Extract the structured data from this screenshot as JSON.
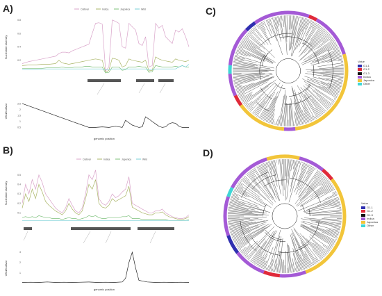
{
  "panels": {
    "A": "A)",
    "B": "B)",
    "C": "C)",
    "D": "D)"
  },
  "series_names": [
    "Cultivar",
    "Indica",
    "Japonica",
    "Wild"
  ],
  "series_colors": {
    "Cultivar": "#d9a3c9",
    "Indica": "#aab567",
    "Japonica": "#7cc07a",
    "Wild": "#77cfd6"
  },
  "y_label_top": "Nucleotide diversity",
  "y_label_bottom": "Wild/Cultivar",
  "x_label": "genomic position",
  "legend": {
    "title": "Value",
    "items": [
      {
        "label": "G1-1",
        "color": "#2f2fb0"
      },
      {
        "label": "G1-2",
        "color": "#e02a3a"
      },
      {
        "label": "G1-3",
        "color": "#111111"
      },
      {
        "label": "Indica",
        "color": "#a45ad6"
      },
      {
        "label": "Japonica",
        "color": "#f2c53a"
      },
      {
        "label": "Other",
        "color": "#3fd6d6"
      }
    ]
  },
  "chart_data": [
    {
      "type": "line",
      "panel": "A-top",
      "ylabel": "Nucleotide diversity",
      "x": [
        0,
        4,
        8,
        12,
        16,
        20,
        22,
        24,
        26,
        28,
        30,
        32,
        34,
        36,
        38,
        40,
        42,
        44,
        46,
        48,
        50,
        52,
        54,
        56,
        58,
        60,
        62,
        64,
        66,
        68,
        70,
        72,
        74,
        76,
        78,
        80,
        82,
        84,
        86,
        88,
        90,
        92,
        94,
        96,
        98,
        100
      ],
      "series": [
        {
          "name": "Cultivar",
          "values": [
            0.15,
            0.18,
            0.2,
            0.22,
            0.24,
            0.26,
            0.3,
            0.32,
            0.32,
            0.31,
            0.34,
            0.36,
            0.38,
            0.4,
            0.42,
            0.44,
            0.6,
            0.75,
            0.76,
            0.74,
            0.04,
            0.1,
            0.8,
            0.78,
            0.75,
            0.4,
            0.38,
            0.75,
            0.7,
            0.65,
            0.45,
            0.42,
            0.55,
            0.1,
            0.12,
            0.75,
            0.68,
            0.72,
            0.55,
            0.5,
            0.45,
            0.65,
            0.62,
            0.67,
            0.55,
            0.4
          ]
        },
        {
          "name": "Indica",
          "values": [
            0.12,
            0.13,
            0.13,
            0.14,
            0.14,
            0.15,
            0.2,
            0.16,
            0.15,
            0.14,
            0.15,
            0.16,
            0.17,
            0.18,
            0.19,
            0.2,
            0.21,
            0.22,
            0.21,
            0.2,
            0.02,
            0.05,
            0.23,
            0.22,
            0.2,
            0.1,
            0.12,
            0.22,
            0.2,
            0.19,
            0.18,
            0.17,
            0.2,
            0.04,
            0.05,
            0.25,
            0.22,
            0.2,
            0.19,
            0.18,
            0.17,
            0.22,
            0.2,
            0.19,
            0.18,
            0.2
          ]
        },
        {
          "name": "Japonica",
          "values": [
            0.08,
            0.08,
            0.08,
            0.08,
            0.09,
            0.09,
            0.09,
            0.1,
            0.09,
            0.09,
            0.09,
            0.1,
            0.1,
            0.1,
            0.11,
            0.11,
            0.1,
            0.1,
            0.1,
            0.1,
            0.01,
            0.02,
            0.1,
            0.1,
            0.1,
            0.05,
            0.06,
            0.1,
            0.1,
            0.1,
            0.11,
            0.1,
            0.1,
            0.02,
            0.03,
            0.12,
            0.11,
            0.1,
            0.1,
            0.1,
            0.1,
            0.11,
            0.1,
            0.12,
            0.1,
            0.1
          ]
        },
        {
          "name": "Wild",
          "values": [
            0.06,
            0.06,
            0.06,
            0.07,
            0.07,
            0.07,
            0.07,
            0.07,
            0.07,
            0.07,
            0.07,
            0.07,
            0.07,
            0.07,
            0.07,
            0.07,
            0.07,
            0.07,
            0.07,
            0.07,
            0.06,
            0.06,
            0.07,
            0.07,
            0.07,
            0.07,
            0.07,
            0.07,
            0.07,
            0.07,
            0.07,
            0.07,
            0.07,
            0.06,
            0.06,
            0.07,
            0.07,
            0.07,
            0.07,
            0.07,
            0.07,
            0.07,
            0.1,
            0.12,
            0.1,
            0.14
          ]
        }
      ]
    },
    {
      "type": "line",
      "panel": "A-bottom",
      "ylabel": "Wild/Cultivar",
      "xlabel": "genomic position",
      "x": [
        0,
        10,
        20,
        30,
        40,
        44,
        48,
        52,
        56,
        60,
        62,
        64,
        66,
        68,
        70,
        72,
        74,
        76,
        78,
        80,
        82,
        84,
        86,
        88,
        90,
        92,
        94,
        96,
        98,
        100
      ],
      "values": [
        2.5,
        2.0,
        1.5,
        1.0,
        0.5,
        0.5,
        0.55,
        0.5,
        0.6,
        0.5,
        1.1,
        0.9,
        0.7,
        0.6,
        0.5,
        0.55,
        1.4,
        1.2,
        1.0,
        0.8,
        0.6,
        0.5,
        0.55,
        0.8,
        0.9,
        0.85,
        0.6,
        0.5,
        0.5,
        0.5
      ]
    },
    {
      "type": "line",
      "panel": "B-top",
      "ylabel": "Nucleotide diversity",
      "x": [
        0,
        2,
        4,
        6,
        8,
        10,
        12,
        14,
        16,
        18,
        20,
        22,
        24,
        26,
        28,
        30,
        32,
        34,
        36,
        38,
        40,
        42,
        44,
        46,
        48,
        50,
        52,
        54,
        56,
        58,
        60,
        62,
        64,
        66,
        68,
        70,
        72,
        74,
        76,
        78,
        80,
        82,
        84,
        86,
        88,
        90,
        92,
        94,
        96,
        98,
        100
      ],
      "series": [
        {
          "name": "Cultivar",
          "values": [
            0.2,
            0.4,
            0.3,
            0.45,
            0.35,
            0.5,
            0.42,
            0.3,
            0.25,
            0.2,
            0.15,
            0.12,
            0.1,
            0.15,
            0.25,
            0.18,
            0.12,
            0.1,
            0.15,
            0.3,
            0.5,
            0.45,
            0.55,
            0.25,
            0.2,
            0.18,
            0.22,
            0.3,
            0.26,
            0.28,
            0.32,
            0.35,
            0.48,
            0.2,
            0.18,
            0.16,
            0.14,
            0.12,
            0.1,
            0.1,
            0.12,
            0.12,
            0.14,
            0.1,
            0.08,
            0.06,
            0.05,
            0.04,
            0.04,
            0.05,
            0.08
          ]
        },
        {
          "name": "Indica",
          "values": [
            0.15,
            0.3,
            0.22,
            0.35,
            0.25,
            0.4,
            0.32,
            0.22,
            0.18,
            0.15,
            0.12,
            0.1,
            0.08,
            0.12,
            0.2,
            0.14,
            0.1,
            0.08,
            0.12,
            0.25,
            0.4,
            0.35,
            0.45,
            0.2,
            0.16,
            0.15,
            0.18,
            0.25,
            0.22,
            0.24,
            0.26,
            0.28,
            0.38,
            0.16,
            0.14,
            0.12,
            0.1,
            0.09,
            0.08,
            0.08,
            0.1,
            0.1,
            0.11,
            0.08,
            0.06,
            0.05,
            0.04,
            0.03,
            0.03,
            0.04,
            0.06
          ]
        },
        {
          "name": "Japonica",
          "values": [
            0.05,
            0.06,
            0.05,
            0.06,
            0.05,
            0.07,
            0.06,
            0.05,
            0.05,
            0.04,
            0.04,
            0.04,
            0.03,
            0.04,
            0.05,
            0.04,
            0.04,
            0.03,
            0.04,
            0.05,
            0.07,
            0.06,
            0.07,
            0.05,
            0.04,
            0.04,
            0.05,
            0.05,
            0.05,
            0.05,
            0.06,
            0.06,
            0.07,
            0.04,
            0.04,
            0.04,
            0.03,
            0.03,
            0.03,
            0.03,
            0.03,
            0.03,
            0.03,
            0.03,
            0.02,
            0.02,
            0.02,
            0.02,
            0.02,
            0.02,
            0.03
          ]
        },
        {
          "name": "Wild",
          "values": [
            0.02,
            0.02,
            0.02,
            0.02,
            0.02,
            0.02,
            0.02,
            0.02,
            0.02,
            0.02,
            0.02,
            0.02,
            0.02,
            0.02,
            0.02,
            0.02,
            0.02,
            0.02,
            0.02,
            0.02,
            0.02,
            0.02,
            0.02,
            0.02,
            0.02,
            0.02,
            0.02,
            0.02,
            0.02,
            0.02,
            0.02,
            0.02,
            0.02,
            0.02,
            0.02,
            0.02,
            0.02,
            0.02,
            0.02,
            0.02,
            0.02,
            0.02,
            0.02,
            0.02,
            0.02,
            0.02,
            0.02,
            0.02,
            0.02,
            0.02,
            0.02
          ]
        }
      ]
    },
    {
      "type": "line",
      "panel": "B-bottom",
      "ylabel": "Wild/Cultivar",
      "xlabel": "genomic position",
      "x": [
        0,
        5,
        10,
        15,
        20,
        25,
        30,
        35,
        40,
        45,
        50,
        55,
        60,
        62,
        64,
        66,
        68,
        70,
        75,
        80,
        85,
        90,
        95,
        100
      ],
      "values": [
        0.1,
        0.12,
        0.1,
        0.15,
        0.1,
        0.12,
        0.1,
        0.12,
        0.14,
        0.1,
        0.12,
        0.1,
        0.15,
        0.5,
        2.0,
        3.0,
        1.5,
        0.3,
        0.15,
        0.1,
        0.12,
        0.1,
        0.12,
        0.1
      ]
    }
  ]
}
